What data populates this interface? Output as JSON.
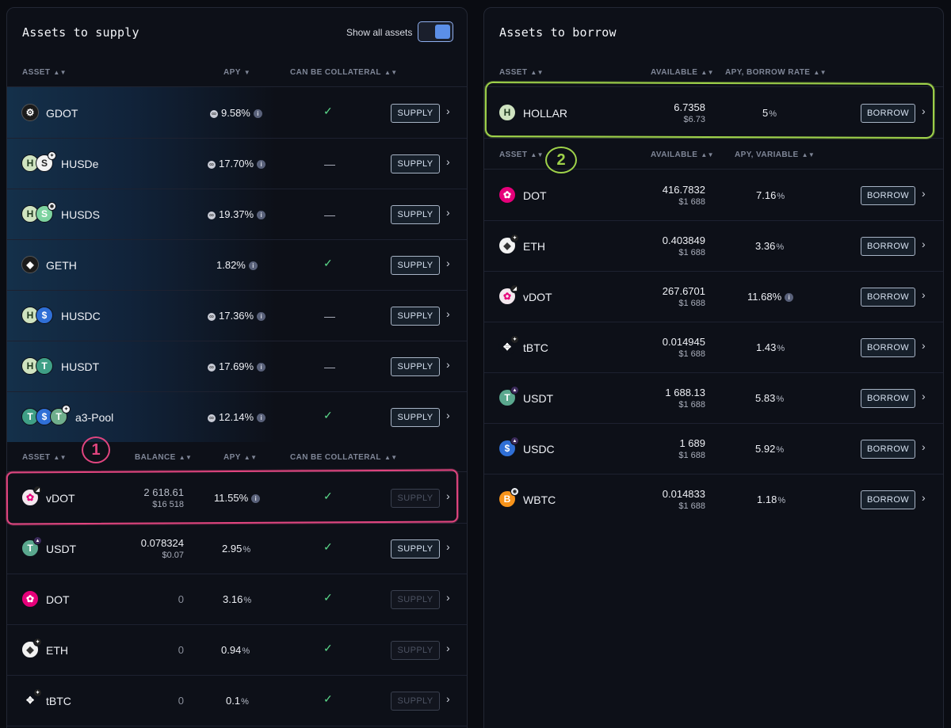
{
  "supply": {
    "title": "Assets to supply",
    "toggle_label": "Show all assets",
    "header1": {
      "asset": "ASSET",
      "apy": "APY",
      "collateral": "CAN BE COLLATERAL"
    },
    "rows1": [
      {
        "name": "GDOT",
        "apy": "9.58%",
        "collateral": "✓",
        "button": "SUPPLY"
      },
      {
        "name": "HUSDe",
        "apy": "17.70%",
        "collateral": "—",
        "button": "SUPPLY"
      },
      {
        "name": "HUSDS",
        "apy": "19.37%",
        "collateral": "—",
        "button": "SUPPLY"
      },
      {
        "name": "GETH",
        "apy": "1.82%",
        "collateral": "✓",
        "button": "SUPPLY"
      },
      {
        "name": "HUSDC",
        "apy": "17.36%",
        "collateral": "—",
        "button": "SUPPLY"
      },
      {
        "name": "HUSDT",
        "apy": "17.69%",
        "collateral": "—",
        "button": "SUPPLY"
      },
      {
        "name": "a3-Pool",
        "apy": "12.14%",
        "collateral": "✓",
        "button": "SUPPLY"
      }
    ],
    "header2": {
      "asset": "ASSET",
      "balance": "BALANCE",
      "apy": "APY",
      "collateral": "CAN BE COLLATERAL"
    },
    "rows2": [
      {
        "name": "vDOT",
        "balance": "2 618.61",
        "balance_usd": "$16 518",
        "apy": "11.55",
        "pct": "%",
        "collateral": "✓",
        "button": "SUPPLY"
      },
      {
        "name": "USDT",
        "balance": "0.078324",
        "balance_usd": "$0.07",
        "apy": "2.95",
        "pct": "%",
        "collateral": "✓",
        "button": "SUPPLY"
      },
      {
        "name": "DOT",
        "balance": "0",
        "balance_usd": "",
        "apy": "3.16",
        "pct": "%",
        "collateral": "✓",
        "button": "SUPPLY"
      },
      {
        "name": "ETH",
        "balance": "0",
        "balance_usd": "",
        "apy": "0.94",
        "pct": "%",
        "collateral": "✓",
        "button": "SUPPLY"
      },
      {
        "name": "tBTC",
        "balance": "0",
        "balance_usd": "",
        "apy": "0.1",
        "pct": "%",
        "collateral": "✓",
        "button": "SUPPLY"
      }
    ]
  },
  "borrow": {
    "title": "Assets to borrow",
    "header1": {
      "asset": "ASSET",
      "available": "AVAILABLE",
      "rate": "APY, BORROW RATE"
    },
    "hollar": {
      "name": "HOLLAR",
      "available": "6.7358",
      "available_usd": "$6.73",
      "apy": "5",
      "pct": "%",
      "button": "BORROW"
    },
    "header2": {
      "asset": "ASSET",
      "available": "AVAILABLE",
      "rate": "APY, VARIABLE"
    },
    "rows": [
      {
        "name": "DOT",
        "available": "416.7832",
        "available_usd": "$1 688",
        "apy": "7.16",
        "pct": "%",
        "button": "BORROW"
      },
      {
        "name": "ETH",
        "available": "0.403849",
        "available_usd": "$1 688",
        "apy": "3.36",
        "pct": "%",
        "button": "BORROW"
      },
      {
        "name": "vDOT",
        "available": "267.6701",
        "available_usd": "$1 688",
        "apy": "11.68%",
        "pct": "",
        "button": "BORROW"
      },
      {
        "name": "tBTC",
        "available": "0.014945",
        "available_usd": "$1 688",
        "apy": "1.43",
        "pct": "%",
        "button": "BORROW"
      },
      {
        "name": "USDT",
        "available": "1 688.13",
        "available_usd": "$1 688",
        "apy": "5.83",
        "pct": "%",
        "button": "BORROW"
      },
      {
        "name": "USDC",
        "available": "1 689",
        "available_usd": "$1 688",
        "apy": "5.92",
        "pct": "%",
        "button": "BORROW"
      },
      {
        "name": "WBTC",
        "available": "0.014833",
        "available_usd": "$1 688",
        "apy": "1.18",
        "pct": "%",
        "button": "BORROW"
      }
    ]
  },
  "annotations": {
    "one": "1",
    "two": "2"
  },
  "colors": {
    "accent": "#5b8fe8",
    "check": "#5bd98a",
    "highlight_pink": "#e0457f",
    "highlight_green": "#9fd24a"
  },
  "icons": [
    "gdot-icon",
    "husde-icon",
    "husds-icon",
    "geth-icon",
    "husdc-icon",
    "husdt-icon",
    "a3-pool-icon",
    "vdot-icon",
    "usdt-icon",
    "dot-icon",
    "eth-icon",
    "tbtc-icon",
    "hollar-icon",
    "usdc-icon",
    "wbtc-icon",
    "sort-icon",
    "info-icon",
    "chevron-right-icon",
    "check-icon"
  ]
}
